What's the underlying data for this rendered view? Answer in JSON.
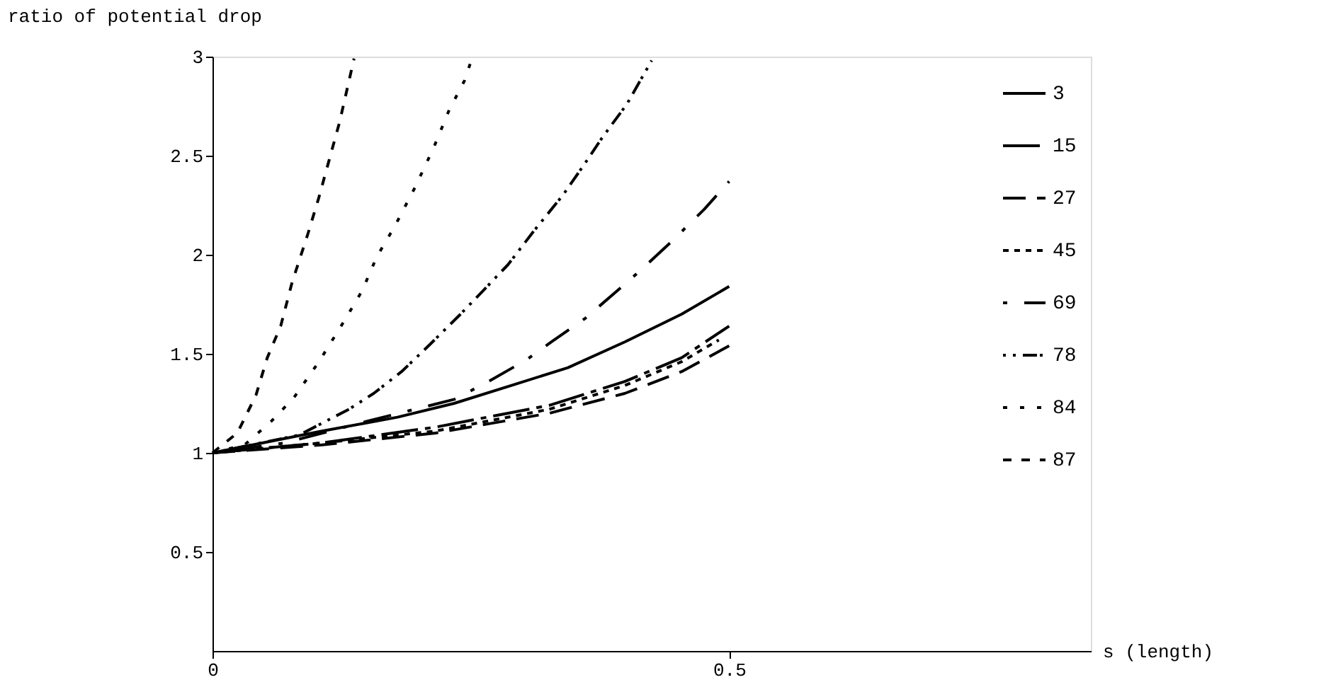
{
  "chart_data": {
    "type": "line",
    "xlabel": "s (length)",
    "ylabel": "ratio of potential drop",
    "xlim": [
      0,
      0.85
    ],
    "xticks": [
      0,
      0.5
    ],
    "ylim": [
      0,
      3
    ],
    "yticks": [
      0.5,
      1,
      1.5,
      2,
      2.5,
      3
    ],
    "grid": false,
    "legend": "top right",
    "marker": "none",
    "series": [
      {
        "name": "3",
        "color": "#000000",
        "line_style": "solid",
        "x": [
          0,
          0.106,
          0.179,
          0.234,
          0.289,
          0.344,
          0.399,
          0.454,
          0.5
        ],
        "values": [
          1,
          1.11,
          1.18,
          1.25,
          1.34,
          1.43,
          1.56,
          1.7,
          1.84
        ]
      },
      {
        "name": "15",
        "color": "#000000",
        "line_style": "dashed",
        "x": [
          0,
          0.106,
          0.216,
          0.326,
          0.399,
          0.454,
          0.5
        ],
        "values": [
          1,
          1.05,
          1.13,
          1.24,
          1.36,
          1.48,
          1.64
        ]
      },
      {
        "name": "27",
        "color": "#000000",
        "line_style": "dashed",
        "x": [
          0,
          0.106,
          0.216,
          0.326,
          0.399,
          0.454,
          0.5
        ],
        "values": [
          1,
          1.04,
          1.1,
          1.2,
          1.3,
          1.41,
          1.54
        ]
      },
      {
        "name": "45",
        "color": "#000000",
        "line_style": "dotted",
        "x": [
          0,
          0.106,
          0.216,
          0.326,
          0.399,
          0.454,
          0.49
        ],
        "values": [
          1,
          1.05,
          1.11,
          1.22,
          1.34,
          1.46,
          1.57
        ]
      },
      {
        "name": "69",
        "color": "#000000",
        "line_style": "dashed",
        "x": [
          0,
          0.07,
          0.15,
          0.234,
          0.267,
          0.304,
          0.328,
          0.361,
          0.392,
          0.414,
          0.445,
          0.476,
          0.5
        ],
        "values": [
          1,
          1.05,
          1.16,
          1.27,
          1.36,
          1.47,
          1.56,
          1.68,
          1.82,
          1.92,
          2.07,
          2.23,
          2.37
        ]
      },
      {
        "name": "78",
        "color": "#000000",
        "line_style": "dashed",
        "x": [
          0,
          0.084,
          0.132,
          0.156,
          0.183,
          0.211,
          0.24,
          0.264,
          0.286,
          0.311,
          0.339,
          0.359,
          0.377,
          0.401,
          0.425
        ],
        "values": [
          1,
          1.09,
          1.22,
          1.3,
          1.41,
          1.55,
          1.7,
          1.83,
          1.95,
          2.12,
          2.3,
          2.45,
          2.59,
          2.76,
          2.98
        ]
      },
      {
        "name": "84",
        "color": "#000000",
        "line_style": "dotted",
        "x": [
          0,
          0.031,
          0.057,
          0.079,
          0.103,
          0.128,
          0.145,
          0.159,
          0.176,
          0.196,
          0.214,
          0.229,
          0.244,
          0.251
        ],
        "values": [
          1,
          1.04,
          1.16,
          1.28,
          1.46,
          1.67,
          1.82,
          1.99,
          2.14,
          2.34,
          2.54,
          2.73,
          2.88,
          2.99
        ]
      },
      {
        "name": "87",
        "color": "#000000",
        "line_style": "dotted",
        "x": [
          0,
          0.024,
          0.042,
          0.053,
          0.066,
          0.077,
          0.092,
          0.103,
          0.113,
          0.123,
          0.137
        ],
        "values": [
          1,
          1.1,
          1.29,
          1.48,
          1.64,
          1.86,
          2.1,
          2.29,
          2.48,
          2.67,
          2.99
        ]
      }
    ]
  }
}
